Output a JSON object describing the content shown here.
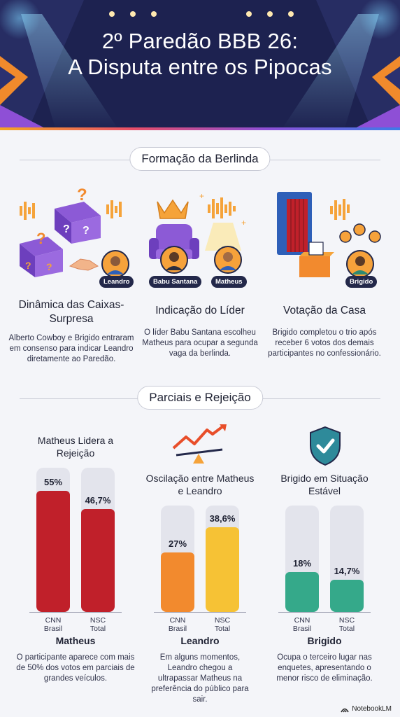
{
  "header": {
    "title_line1": "2º Paredão BBB 26:",
    "title_line2": "A Disputa entre os Pipocas"
  },
  "sections": {
    "formation": "Formação da Berlinda",
    "partials": "Parciais e Rejeição"
  },
  "formation": [
    {
      "title": "Dinâmica das Caixas-Surpresa",
      "badge": "Leandro",
      "icon": "surprise-boxes-icon",
      "desc": "Alberto Cowboy e Brigido entraram em consenso para indicar Leandro diretamente ao Paredão."
    },
    {
      "title": "Indicação do Líder",
      "badge1": "Babu Santana",
      "badge2": "Matheus",
      "icon": "leader-throne-icon",
      "desc": "O líder Babu Santana escolheu Matheus para ocupar a segunda vaga da berlinda."
    },
    {
      "title": "Votação da Casa",
      "badge": "Brigido",
      "icon": "voting-booth-icon",
      "desc": "Brigido completou o trio após receber 6 votos dos demais participantes no confessionário."
    }
  ],
  "charts": [
    {
      "title": "Matheus Lidera a Rejeição",
      "icon": "",
      "bars": [
        {
          "label1": "CNN",
          "label2": "Brasil",
          "value": 55,
          "text": "55%"
        },
        {
          "label1": "NSC",
          "label2": "Total",
          "value": 46.7,
          "text": "46,7%"
        }
      ],
      "name": "Matheus",
      "desc": "O participante aparece com mais de 50% dos votos em parciais de grandes veículos."
    },
    {
      "title": "Oscilação entre Matheus e Leandro",
      "icon": "trend-seesaw-icon",
      "bars": [
        {
          "label1": "CNN",
          "label2": "Brasil",
          "value": 27,
          "text": "27%"
        },
        {
          "label1": "NSC",
          "label2": "Total",
          "value": 38.6,
          "text": "38,6%"
        }
      ],
      "name": "Leandro",
      "desc": "Em alguns momentos, Leandro chegou a ultrapassar Matheus na preferência do público para sair."
    },
    {
      "title": "Brigido em Situação Estável",
      "icon": "shield-check-icon",
      "bars": [
        {
          "label1": "CNN",
          "label2": "Brasil",
          "value": 18,
          "text": "18%"
        },
        {
          "label1": "NSC",
          "label2": "Total",
          "value": 14.7,
          "text": "14,7%"
        }
      ],
      "name": "Brigido",
      "desc": "Ocupa o terceiro lugar nas enquetes, apresentando o menor risco de eliminação."
    }
  ],
  "colors": {
    "matheus_bar": "#c0202a",
    "leandro_bar_1": "#f28a2e",
    "leandro_bar_2": "#f6c235",
    "brigido_bar": "#35a98a",
    "track": "#e3e4ec"
  },
  "footer": {
    "brand": "NotebookLM"
  }
}
